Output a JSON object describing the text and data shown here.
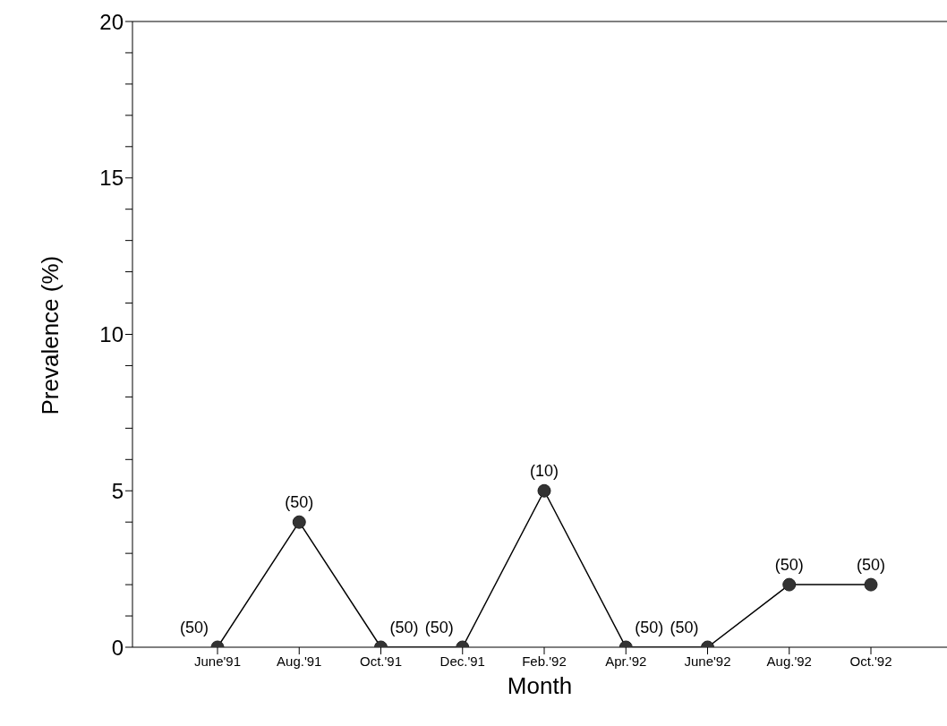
{
  "chart_data": {
    "type": "line",
    "xlabel": "Month",
    "ylabel": "Prevalence (%)",
    "categories": [
      "June'91",
      "Aug.'91",
      "Oct.'91",
      "Dec.'91",
      "Feb.'92",
      "Apr.'92",
      "June'92",
      "Aug.'92",
      "Oct.'92"
    ],
    "series": [
      {
        "color": "#333333",
        "values": [
          0,
          4,
          0,
          0,
          5,
          0,
          0,
          2,
          2
        ]
      }
    ],
    "annotations": [
      {
        "text": "(50)",
        "x": "June'91",
        "y": 0
      },
      {
        "text": "(50)",
        "x": "Aug.'91",
        "y": 4
      },
      {
        "text": "(50)",
        "x": "Oct.'91",
        "y": 0
      },
      {
        "text": "(50)",
        "x": "Dec.'91",
        "y": 0
      },
      {
        "text": "(10)",
        "x": "Feb.'92",
        "y": 5
      },
      {
        "text": "(50)",
        "x": "Apr.'92",
        "y": 0
      },
      {
        "text": "(50)",
        "x": "June'92",
        "y": 0
      },
      {
        "text": "(50)",
        "x": "Aug.'92",
        "y": 2
      },
      {
        "text": "(50)",
        "x": "Oct.'92",
        "y": 2
      }
    ],
    "ylim": [
      0,
      20
    ],
    "yticks": [
      0,
      {
        "value": 1,
        "label": null
      },
      {
        "value": 2,
        "label": null
      },
      {
        "value": 3,
        "label": null
      },
      {
        "value": 4,
        "label": null
      },
      5,
      {
        "value": 6,
        "label": null
      },
      {
        "value": 7,
        "label": null
      },
      {
        "value": 8,
        "label": null
      },
      {
        "value": 9,
        "label": null
      },
      10,
      {
        "value": 11,
        "label": null
      },
      {
        "value": 12,
        "label": null
      },
      {
        "value": 13,
        "label": null
      },
      {
        "value": 14,
        "label": null
      },
      15,
      {
        "value": 16,
        "label": null
      },
      {
        "value": 17,
        "label": null
      },
      {
        "value": 18,
        "label": null
      },
      {
        "value": 19,
        "label": null
      },
      20
    ],
    "marker": "circle",
    "line_style": "solid",
    "grid": false,
    "legend": false
  }
}
